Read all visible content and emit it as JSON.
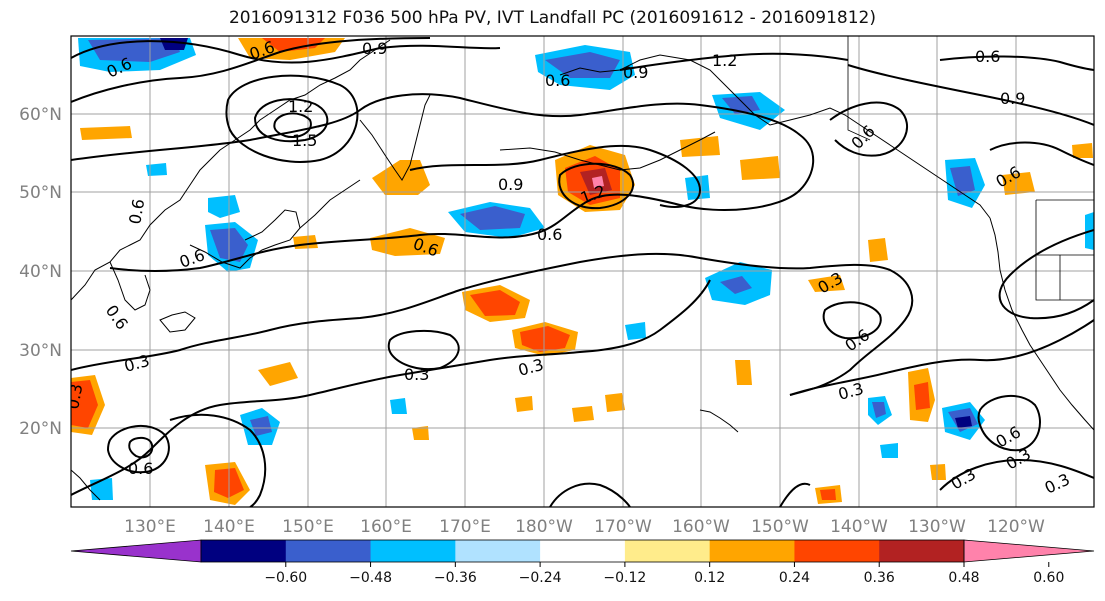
{
  "title": "2016091312 F036 500 hPa PV, IVT Landfall PC (2016091612 - 2016091812)",
  "map": {
    "lat_labels": [
      "60°N",
      "50°N",
      "40°N",
      "30°N",
      "20°N"
    ],
    "lon_labels": [
      "130°E",
      "140°E",
      "150°E",
      "160°E",
      "170°E",
      "180°W",
      "170°W",
      "160°W",
      "150°W",
      "140°W",
      "130°W",
      "120°W"
    ],
    "grid_color": "#a0a0a0",
    "coast_color": "#000000",
    "contour_labels": [
      "0.6",
      "0.9",
      "0.6",
      "1.2",
      "1.5",
      "0.6",
      "0.9",
      "1.2",
      "0.9",
      "0.6",
      "0.6",
      "0.9",
      "0.6",
      "0.6",
      "0.6",
      "0.6",
      "0.3",
      "1.2",
      "0.3",
      "0.6",
      "0.3",
      "0.3",
      "0.3",
      "0.6",
      "0.3",
      "0.6",
      "0.3",
      "0.6",
      "0.3",
      "0.3",
      "0.6"
    ]
  },
  "colorbar": {
    "ticks": [
      "−0.60",
      "−0.48",
      "−0.36",
      "−0.24",
      "−0.12",
      "0.12",
      "0.24",
      "0.36",
      "0.48",
      "0.60"
    ],
    "colors": [
      "#9932cc",
      "#000080",
      "#3a5fcd",
      "#00bfff",
      "#b0e2ff",
      "#ffffff",
      "#ffec8b",
      "#ffa500",
      "#ff4500",
      "#b22222",
      "#ff82ab"
    ]
  }
}
